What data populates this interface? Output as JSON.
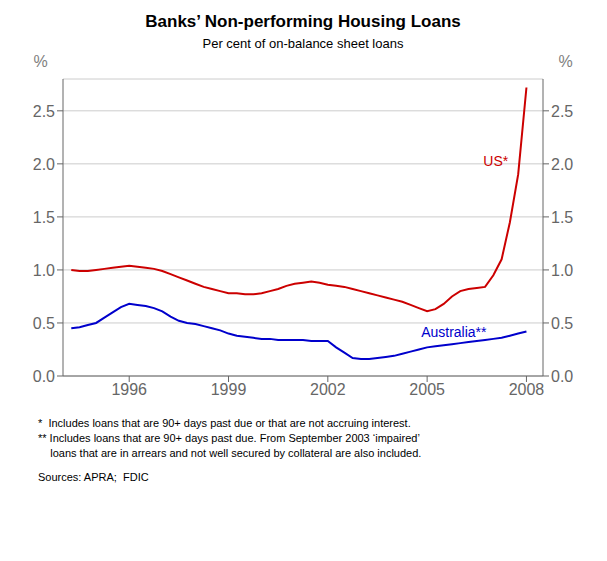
{
  "chart_data": {
    "type": "line",
    "title": "Banks’ Non-performing Housing Loans",
    "subtitle": "Per cent of on-balance sheet loans",
    "ylabel": "%",
    "y2label": "%",
    "footnotes": [
      "*  Includes loans that are 90+ days past due or that are not accruing interest.",
      "** Includes loans that are 90+ days past due. From September 2003 ‘impaired’",
      "    loans that are in arrears and not well secured by collateral are also included.",
      "Sources: APRA;  FDIC"
    ],
    "x": [
      1994.25,
      1994.5,
      1994.75,
      1995.0,
      1995.25,
      1995.5,
      1995.75,
      1996.0,
      1996.25,
      1996.5,
      1996.75,
      1997.0,
      1997.25,
      1997.5,
      1997.75,
      1998.0,
      1998.25,
      1998.5,
      1998.75,
      1999.0,
      1999.25,
      1999.5,
      1999.75,
      2000.0,
      2000.25,
      2000.5,
      2000.75,
      2001.0,
      2001.25,
      2001.5,
      2001.75,
      2002.0,
      2002.25,
      2002.5,
      2002.75,
      2003.0,
      2003.25,
      2003.5,
      2003.75,
      2004.0,
      2004.25,
      2004.5,
      2004.75,
      2005.0,
      2005.25,
      2005.5,
      2005.75,
      2006.0,
      2006.25,
      2006.5,
      2006.75,
      2007.0,
      2007.25,
      2007.5,
      2007.75,
      2008.0
    ],
    "series": [
      {
        "name": "US*",
        "color": "#cc0000",
        "values": [
          1.0,
          0.99,
          0.99,
          1.0,
          1.01,
          1.02,
          1.03,
          1.04,
          1.03,
          1.02,
          1.01,
          0.99,
          0.96,
          0.93,
          0.9,
          0.87,
          0.84,
          0.82,
          0.8,
          0.78,
          0.78,
          0.77,
          0.77,
          0.78,
          0.8,
          0.82,
          0.85,
          0.87,
          0.88,
          0.89,
          0.88,
          0.86,
          0.85,
          0.84,
          0.82,
          0.8,
          0.78,
          0.76,
          0.74,
          0.72,
          0.7,
          0.67,
          0.64,
          0.61,
          0.63,
          0.68,
          0.75,
          0.8,
          0.82,
          0.83,
          0.84,
          0.95,
          1.1,
          1.45,
          1.9,
          2.72
        ]
      },
      {
        "name": "Australia**",
        "color": "#0000cc",
        "values": [
          0.45,
          0.46,
          0.48,
          0.5,
          0.55,
          0.6,
          0.65,
          0.68,
          0.67,
          0.66,
          0.64,
          0.61,
          0.56,
          0.52,
          0.5,
          0.49,
          0.47,
          0.45,
          0.43,
          0.4,
          0.38,
          0.37,
          0.36,
          0.35,
          0.35,
          0.34,
          0.34,
          0.34,
          0.34,
          0.33,
          0.33,
          0.33,
          0.27,
          0.22,
          0.17,
          0.16,
          0.16,
          0.17,
          0.18,
          0.19,
          0.21,
          0.23,
          0.25,
          0.27,
          0.28,
          0.29,
          0.3,
          0.31,
          0.32,
          0.33,
          0.34,
          0.35,
          0.36,
          0.38,
          0.4,
          0.42
        ]
      }
    ],
    "xlim": [
      1994.0,
      2008.5
    ],
    "xticks": [
      1996,
      1999,
      2002,
      2005,
      2008
    ],
    "ylim": [
      0,
      2.8
    ],
    "yticks": [
      {
        "value": 0.0,
        "label": "0.0"
      },
      0.5,
      {
        "value": 1.0,
        "label": "1.0"
      },
      1.5,
      {
        "value": 2.0,
        "label": "2.0"
      },
      2.5
    ],
    "y2lim": [
      0,
      2.8
    ],
    "y2ticks": [
      {
        "value": 0.0,
        "label": "0.0"
      },
      0.5,
      {
        "value": 1.0,
        "label": "1.0"
      },
      1.5,
      {
        "value": 2.0,
        "label": "2.0"
      },
      2.5
    ],
    "grid": true
  }
}
